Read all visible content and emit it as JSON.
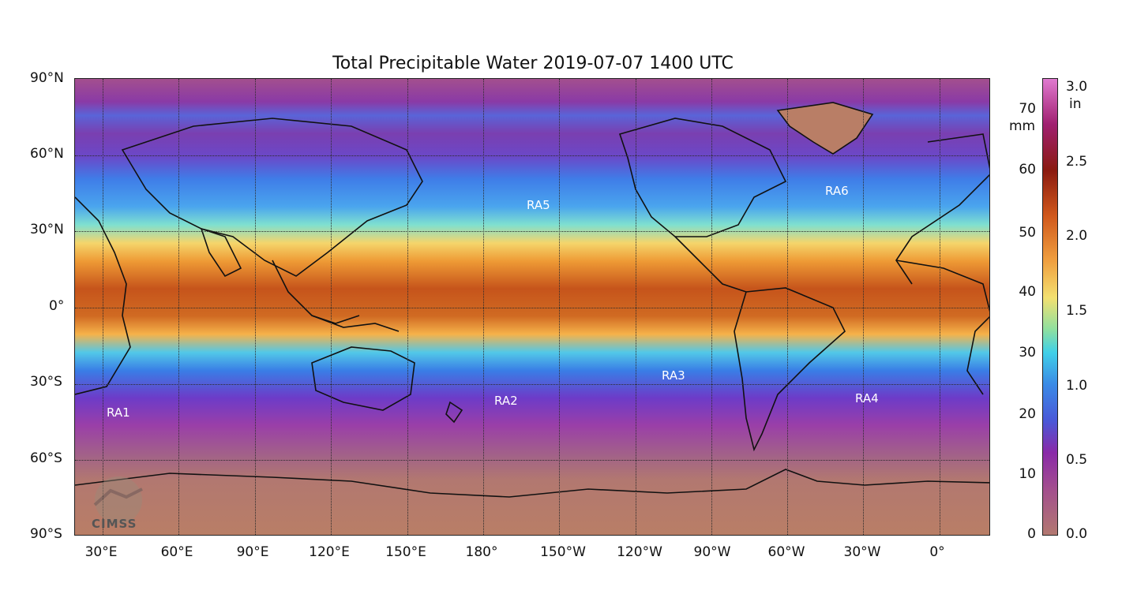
{
  "title": "Total Precipitable Water  2019-07-07 1400 UTC",
  "regions": {
    "ra1": "RA1",
    "ra2": "RA2",
    "ra3": "RA3",
    "ra4": "RA4",
    "ra5": "RA5",
    "ra6": "RA6"
  },
  "lat_labels": [
    "90°N",
    "60°N",
    "30°N",
    "0°",
    "30°S",
    "60°S",
    "90°S"
  ],
  "lon_labels": [
    "30°E",
    "60°E",
    "90°E",
    "120°E",
    "150°E",
    "180°",
    "150°W",
    "120°W",
    "90°W",
    "60°W",
    "30°W",
    "0°"
  ],
  "colorbar": {
    "mm_unit": "mm",
    "in_unit": "in",
    "mm_ticks": [
      "70",
      "60",
      "50",
      "40",
      "30",
      "20",
      "10",
      "0"
    ],
    "in_ticks": [
      "3.0",
      "2.5",
      "2.0",
      "1.5",
      "1.0",
      "0.5",
      "0.0"
    ],
    "mm_range": [
      0,
      76
    ],
    "in_range": [
      0,
      3.0
    ]
  },
  "logo_text": "CIMSS",
  "colors": {
    "tropical": "#c6541b",
    "dry": "#b97e66",
    "mid": "#3a7de6",
    "region_label": "#ffffff"
  }
}
